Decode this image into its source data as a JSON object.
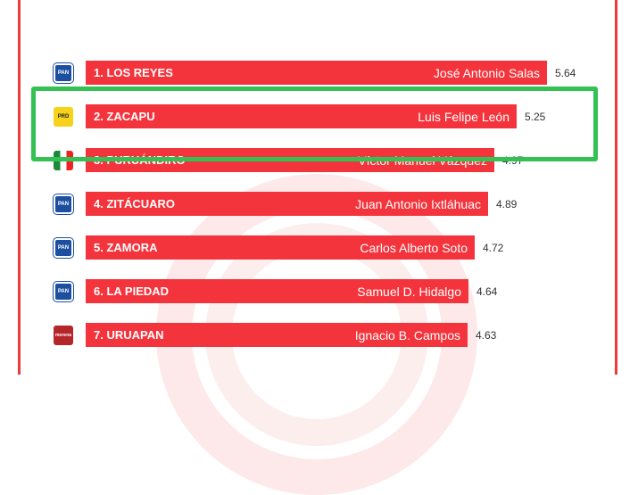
{
  "colors": {
    "bar": "#f4343c",
    "highlight": "#33c153",
    "frame": "#ee3a3a"
  },
  "rows": [
    {
      "rank_city": "1. LOS REYES",
      "name": "José Antonio Salas",
      "value": 5.64,
      "party": "PAN"
    },
    {
      "rank_city": "2. ZACAPU",
      "name": "Luis Felipe León",
      "value": 5.25,
      "party": "PRD"
    },
    {
      "rank_city": "3. PURUÁNDIRO",
      "name": "Víctor Manuel Vázquez",
      "value": 4.97,
      "party": "PRI"
    },
    {
      "rank_city": "4. ZITÁCUARO",
      "name": "Juan Antonio Ixtláhuac",
      "value": 4.89,
      "party": "PAN"
    },
    {
      "rank_city": "5. ZAMORA",
      "name": "Carlos Alberto Soto",
      "value": 4.72,
      "party": "PAN"
    },
    {
      "rank_city": "6. LA PIEDAD",
      "name": "Samuel D. Hidalgo",
      "value": 4.64,
      "party": "PAN"
    },
    {
      "rank_city": "7. URUAPAN",
      "name": "Ignacio B. Campos",
      "value": 4.63,
      "party": "morena"
    }
  ]
}
